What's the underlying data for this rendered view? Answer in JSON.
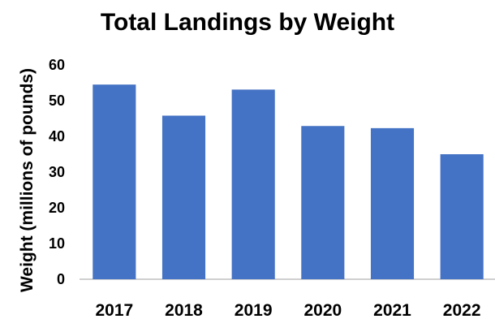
{
  "chart_data": {
    "type": "bar",
    "title": "Total Landings by Weight",
    "xlabel": "",
    "ylabel": "Weight (millions of pounds)",
    "categories": [
      "2017",
      "2018",
      "2019",
      "2020",
      "2021",
      "2022"
    ],
    "values": [
      54.5,
      45.8,
      53.1,
      42.9,
      42.3,
      35.0
    ],
    "ylim": [
      0,
      60
    ],
    "yticks": [
      "0",
      "10",
      "20",
      "30",
      "40",
      "50",
      "60"
    ],
    "grid": false,
    "legend": "none",
    "colors": {
      "bar": "#4472C4",
      "axis": "#BFBFBF",
      "text": "#000000"
    }
  }
}
